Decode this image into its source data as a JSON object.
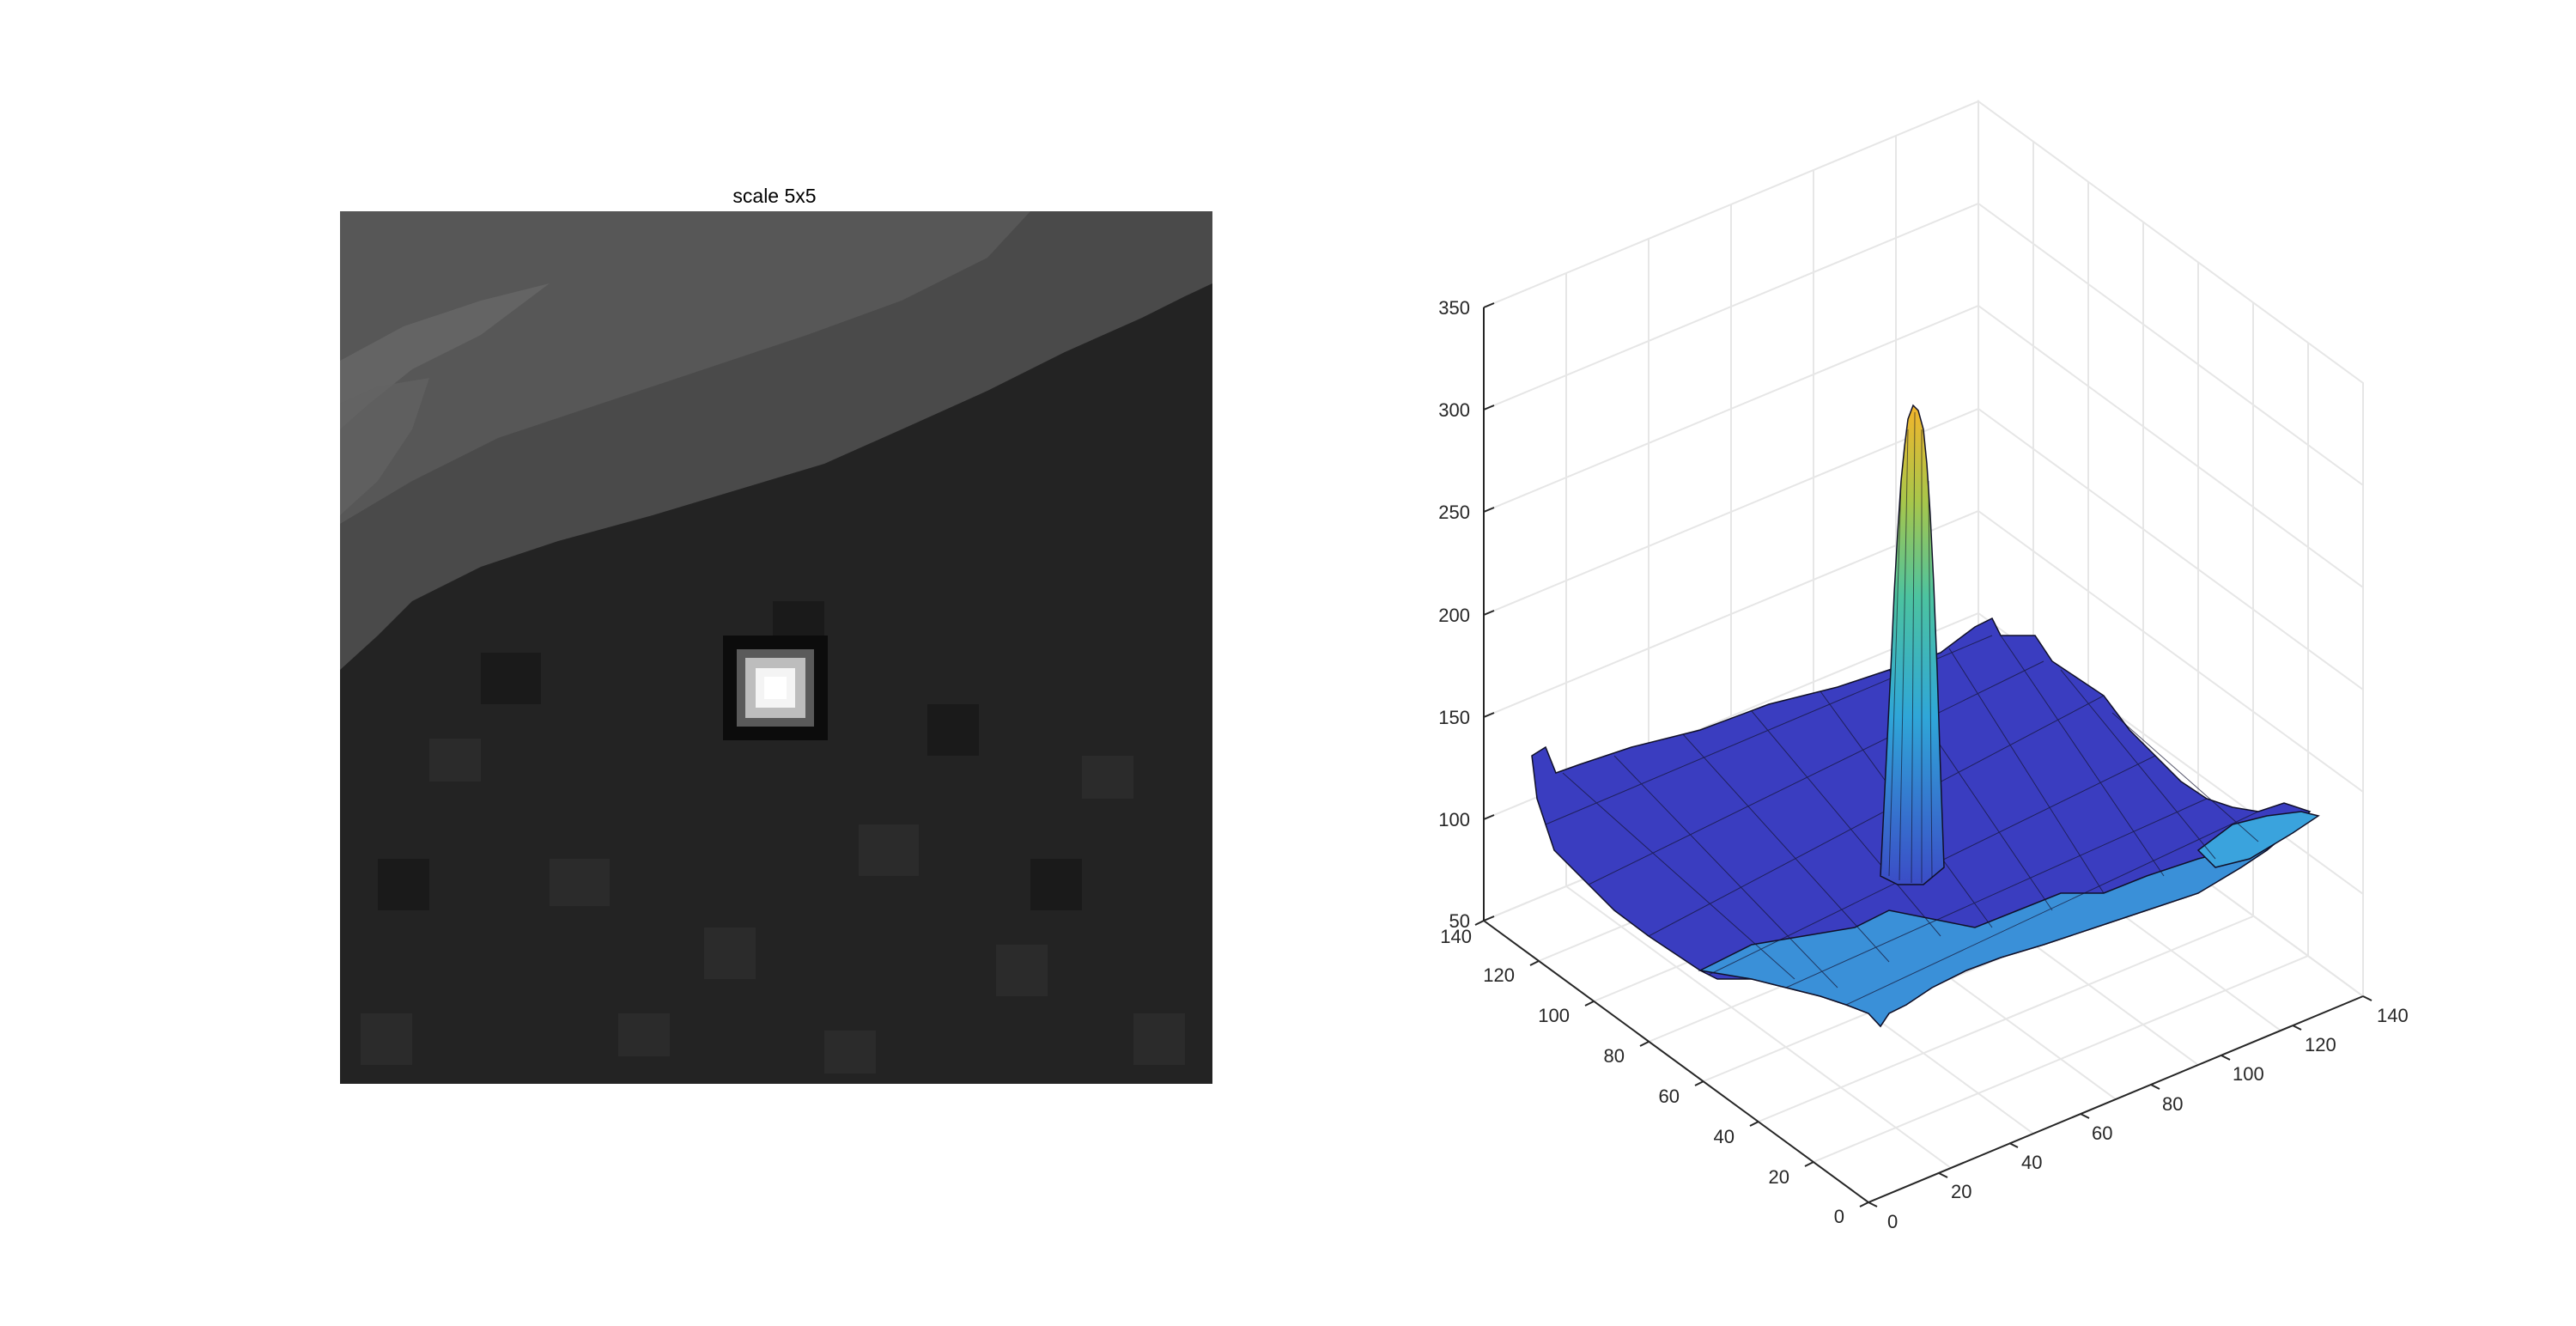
{
  "chart_data": [
    {
      "type": "heatmap",
      "title": "scale 5x5",
      "colormap": "gray",
      "description_values": {
        "background": "dark gray, darker lower region, lighter textured band along upper-left and top",
        "peak": "single bright white square near center-left"
      },
      "grid": false,
      "axes_visible": false
    },
    {
      "type": "surface",
      "title": "",
      "colormap": "parula",
      "zlim": [
        50,
        350
      ],
      "z_ticks": [
        "50",
        "100",
        "150",
        "200",
        "250",
        "300",
        "350"
      ],
      "xlim": [
        0,
        140
      ],
      "x_ticks": [
        "0",
        "20",
        "40",
        "60",
        "80",
        "100",
        "120",
        "140"
      ],
      "ylim": [
        0,
        140
      ],
      "y_ticks": [
        "0",
        "20",
        "40",
        "60",
        "80",
        "100",
        "120",
        "140"
      ],
      "grid": true,
      "peak": {
        "x": 72,
        "y": 72,
        "z": 300
      },
      "baseline_z": [
        85,
        120
      ]
    }
  ],
  "colors": {
    "surface_low": "#3e3ec4",
    "surface_mid": "#2fa6d8",
    "surface_high": "#f0b429",
    "grid": "#e6e6e6",
    "axis": "#262626"
  }
}
